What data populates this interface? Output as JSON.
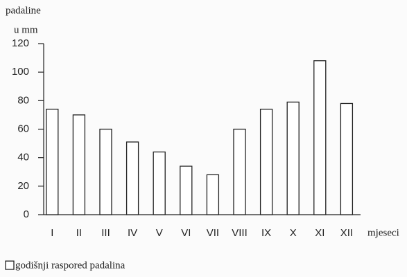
{
  "chart_data": {
    "type": "bar",
    "y_label_line1": "padaline",
    "y_label_line2": "u mm",
    "x_label": "mjeseci",
    "categories": [
      "I",
      "II",
      "III",
      "IV",
      "V",
      "VI",
      "VII",
      "VIII",
      "IX",
      "X",
      "XI",
      "XII"
    ],
    "series": [
      {
        "name": "godišnji raspored padalina",
        "color": "#ffffff",
        "values": [
          74,
          70,
          60,
          51,
          44,
          34,
          28,
          60,
          74,
          79,
          108,
          78
        ]
      }
    ],
    "ylim": [
      0,
      120
    ],
    "yticks": [
      0,
      20,
      40,
      60,
      80,
      100,
      120
    ],
    "grid": false
  }
}
